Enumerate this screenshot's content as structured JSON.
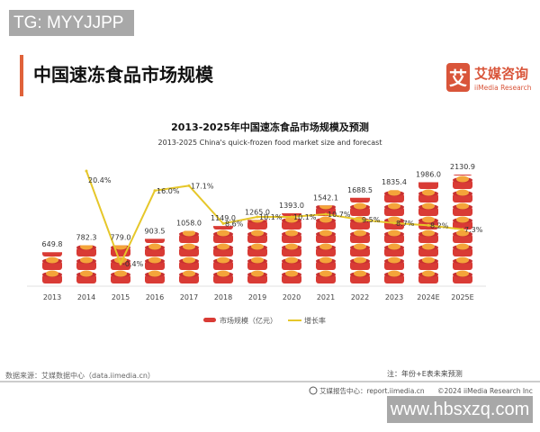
{
  "watermark_top": "TG: MYYJJPP",
  "watermark_bottom": "www.hbsxzq.com",
  "page_title": "中国速冻食品市场规模",
  "logo": {
    "cn": "艾媒咨询",
    "en": "iiMedia Research",
    "mark": "艾"
  },
  "colors": {
    "accent": "#e0623a",
    "bar": "#d93b35",
    "bar_top": "#f4a43a",
    "line": "#e6c72a"
  },
  "chart_data": {
    "type": "bar+line",
    "title": "2013-2025年中国速冻食品市场规模及预测",
    "subtitle": "2013-2025 China's quick-frozen food market size and forecast",
    "categories": [
      "2013",
      "2014",
      "2015",
      "2016",
      "2017",
      "2018",
      "2019",
      "2020",
      "2021",
      "2022",
      "2023",
      "2024E",
      "2025E"
    ],
    "series": [
      {
        "name": "市场规模（亿元）",
        "type": "bar",
        "values": [
          649.8,
          782.3,
          779.0,
          903.5,
          1058.0,
          1149.0,
          1265.0,
          1393.0,
          1542.1,
          1688.5,
          1835.4,
          1986.0,
          2130.9
        ],
        "labels": [
          "649.8",
          "782.3",
          "779.0",
          "903.5",
          "1058.0",
          "1149.0",
          "1265.0",
          "1393.0",
          "1542.1",
          "1688.5",
          "1835.4",
          "1986.0",
          "2130.9"
        ]
      },
      {
        "name": "增长率",
        "type": "line",
        "values": [
          null,
          20.4,
          -0.4,
          16.0,
          17.1,
          8.6,
          10.1,
          10.1,
          10.7,
          9.5,
          8.7,
          8.2,
          7.3
        ],
        "labels": [
          "",
          "20.4%",
          "-0.4%",
          "16.0%",
          "17.1%",
          "8.6%",
          "10.1%",
          "10.1%",
          "10.7%",
          "9.5%",
          "8.7%",
          "8.2%",
          "7.3%"
        ]
      }
    ],
    "ylim_bar": [
      0,
      2200
    ],
    "ylim_rate": [
      -5,
      23
    ],
    "legend_position": "bottom",
    "grid": false
  },
  "footer": {
    "source": "数据来源：艾媒数据中心（data.iimedia.cn）",
    "note": "注：年份+E表未来预测",
    "report": "艾媒报告中心：report.iimedia.cn",
    "copyright": "©2024  iiMedia Research  Inc"
  }
}
